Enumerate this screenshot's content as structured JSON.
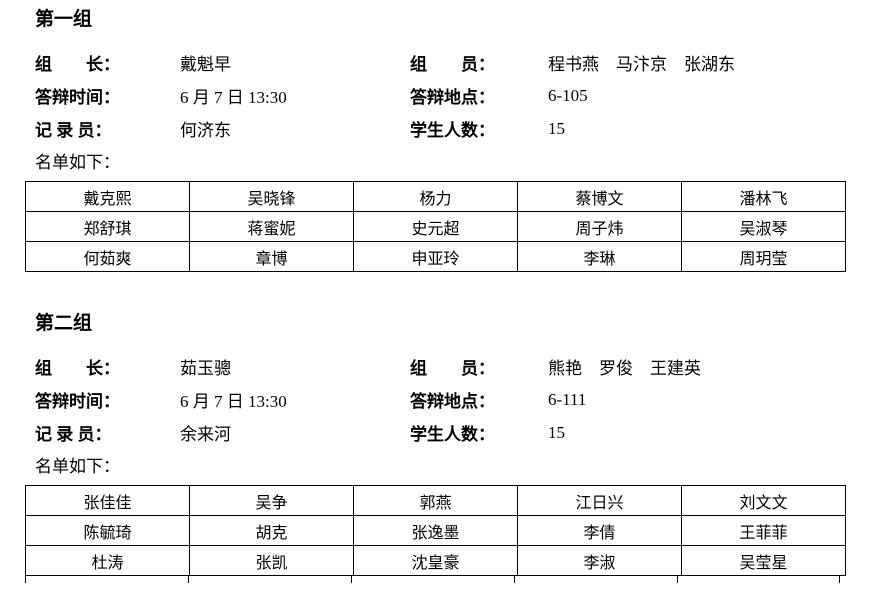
{
  "page": {
    "background_color": "#ffffff",
    "text_color": "#000000",
    "border_color": "#000000"
  },
  "groups": [
    {
      "title": "第一组",
      "info": {
        "leader_label": "组　　长：",
        "leader": "戴魁早",
        "members_label": "组　　员：",
        "members": "程书燕　马汴京　张湖东",
        "time_label": "答辩时间：",
        "time": "6 月 7 日 13:30",
        "location_label": "答辩地点：",
        "location": "6-105",
        "recorder_label": "记 录 员：",
        "recorder": "何济东",
        "count_label": "学生人数：",
        "count": "15"
      },
      "list_label": "名单如下：",
      "roster": [
        [
          "戴克熙",
          "吴晓锋",
          "杨力",
          "蔡博文",
          "潘林飞"
        ],
        [
          "郑舒琪",
          "蒋蜜妮",
          "史元超",
          "周子炜",
          "吴淑琴"
        ],
        [
          "何茹爽",
          "章博",
          "申亚玲",
          "李琳",
          "周玥莹"
        ]
      ]
    },
    {
      "title": "第二组",
      "info": {
        "leader_label": "组　　长：",
        "leader": "茹玉骢",
        "members_label": "组　　员：",
        "members": "熊艳　罗俊　王建英",
        "time_label": "答辩时间：",
        "time": "6 月 7 日 13:30",
        "location_label": "答辩地点：",
        "location": "6-111",
        "recorder_label": "记 录 员：",
        "recorder": "余来河",
        "count_label": "学生人数：",
        "count": "15"
      },
      "list_label": "名单如下：",
      "roster": [
        [
          "张佳佳",
          "吴争",
          "郭燕",
          "江日兴",
          "刘文文"
        ],
        [
          "陈毓琦",
          "胡克",
          "张逸墨",
          "李倩",
          "王菲菲"
        ],
        [
          "杜涛",
          "张凯",
          "沈皇豪",
          "李淑",
          "吴莹星"
        ]
      ]
    }
  ]
}
